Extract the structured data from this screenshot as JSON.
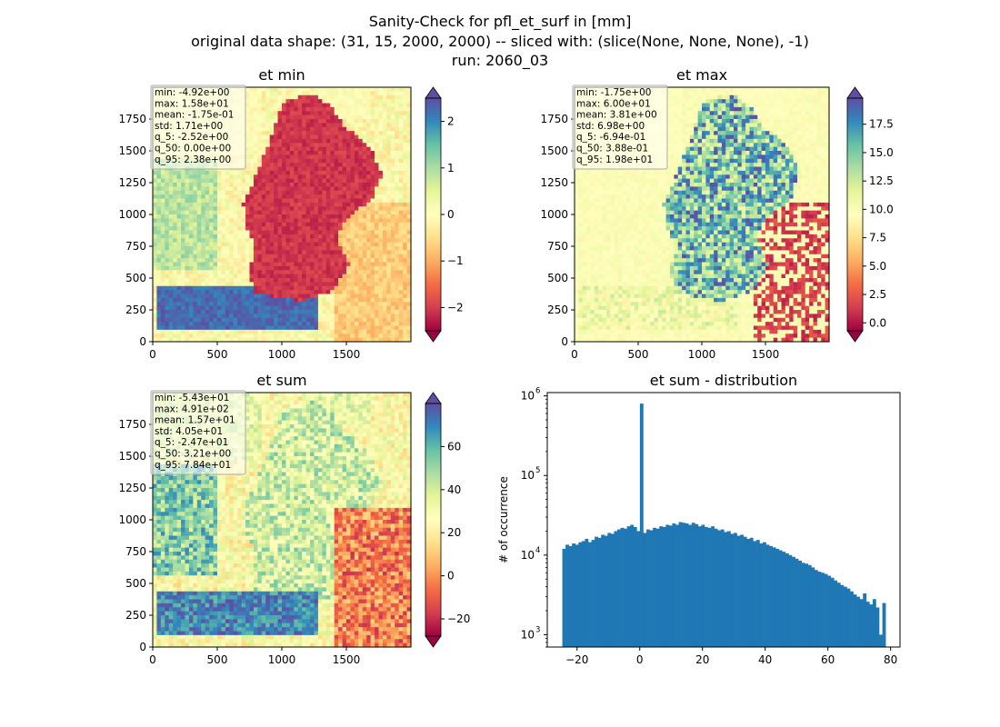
{
  "suptitle": {
    "line1": "Sanity-Check for pfl_et_surf in [mm]",
    "line2": "original data shape: (31, 15, 2000, 2000) -- sliced with: (slice(None, None, None), -1)",
    "line3": "run: 2060_03"
  },
  "chart_data": [
    {
      "type": "heatmap",
      "title": "et min",
      "xlim": [
        0,
        2000
      ],
      "ylim": [
        0,
        2000
      ],
      "xticks": [
        "0",
        "500",
        "1000",
        "1500"
      ],
      "yticks": [
        "0",
        "250",
        "500",
        "750",
        "1000",
        "1250",
        "1500",
        "1750"
      ],
      "colormap": "Spectral",
      "colorbar": {
        "range": [
          -2.5,
          2.5
        ],
        "ticks": [
          "−2",
          "−1",
          "0",
          "1",
          "2"
        ],
        "extend": "both"
      },
      "stats": [
        "min: -4.92e+00",
        "max: 1.58e+01",
        "mean: -1.75e-01",
        "std: 1.71e+00",
        "q_5: -2.52e+00",
        "q_50: 0.00e+00",
        "q_95: 2.38e+00"
      ]
    },
    {
      "type": "heatmap",
      "title": "et max",
      "xlim": [
        0,
        2000
      ],
      "ylim": [
        0,
        2000
      ],
      "xticks": [
        "0",
        "500",
        "1000",
        "1500"
      ],
      "yticks": [
        "0",
        "250",
        "500",
        "750",
        "1000",
        "1250",
        "1500",
        "1750"
      ],
      "colormap": "Spectral",
      "colorbar": {
        "range": [
          -0.7,
          19.8
        ],
        "ticks": [
          "0.0",
          "2.5",
          "5.0",
          "7.5",
          "10.0",
          "12.5",
          "15.0",
          "17.5"
        ],
        "extend": "both"
      },
      "stats": [
        "min: -1.75e+00",
        "max: 6.00e+01",
        "mean: 3.81e+00",
        "std: 6.98e+00",
        "q_5: -6.94e-01",
        "q_50: 3.88e-01",
        "q_95: 1.98e+01"
      ]
    },
    {
      "type": "heatmap",
      "title": "et sum",
      "xlim": [
        0,
        2000
      ],
      "ylim": [
        0,
        2000
      ],
      "xticks": [
        "0",
        "500",
        "1000",
        "1500"
      ],
      "yticks": [
        "0",
        "250",
        "500",
        "750",
        "1000",
        "1250",
        "1500",
        "1750"
      ],
      "colormap": "Spectral",
      "colorbar": {
        "range": [
          -28,
          80
        ],
        "ticks": [
          "−20",
          "0",
          "20",
          "40",
          "60"
        ],
        "extend": "both"
      },
      "stats": [
        "min: -5.43e+01",
        "max: 4.91e+02",
        "mean: 1.57e+01",
        "std: 4.05e+01",
        "q_5: -2.47e+01",
        "q_50: 3.21e+00",
        "q_95: 7.84e+01"
      ]
    },
    {
      "type": "bar",
      "subtype": "histogram",
      "title": "et sum - distribution",
      "ylabel": "# of occurrence",
      "xlim": [
        -29.5,
        83
      ],
      "ylim": [
        700,
        1100000
      ],
      "yscale": "log",
      "xticks": [
        -20,
        0,
        20,
        40,
        60,
        80
      ],
      "xtick_labels": [
        "−20",
        "0",
        "20",
        "40",
        "60",
        "80"
      ],
      "yticks": [
        1000,
        10000,
        100000,
        1000000
      ],
      "ytick_labels": [
        "10",
        "10",
        "10",
        "10"
      ],
      "ytick_exponents": [
        "3",
        "4",
        "5",
        "6"
      ],
      "bar_color": "#1f77b4",
      "bin_range": [
        -24.7,
        78.4
      ],
      "bin_count": 100,
      "counts": [
        12000,
        13500,
        13000,
        14000,
        13500,
        14500,
        15000,
        16000,
        14500,
        15500,
        17000,
        16500,
        18000,
        17500,
        19000,
        18500,
        20000,
        21000,
        22000,
        21500,
        23000,
        24000,
        22500,
        20000,
        800000,
        19000,
        21000,
        20500,
        22000,
        21500,
        23000,
        22500,
        24000,
        23500,
        25000,
        24000,
        26000,
        25500,
        25000,
        24000,
        25500,
        24500,
        23000,
        24000,
        22500,
        22000,
        23000,
        21500,
        20500,
        21000,
        19500,
        20000,
        18500,
        19000,
        17500,
        18000,
        17000,
        16000,
        16500,
        15000,
        15500,
        14000,
        14500,
        13500,
        13000,
        12500,
        12000,
        11500,
        11000,
        10500,
        10000,
        9500,
        9000,
        8500,
        8000,
        7800,
        7500,
        7000,
        6500,
        6200,
        6000,
        5800,
        5500,
        5200,
        4800,
        4500,
        4200,
        4000,
        3800,
        3500,
        3200,
        3000,
        2800,
        3300,
        2600,
        2400,
        2800,
        2200,
        1000,
        2500
      ]
    }
  ]
}
